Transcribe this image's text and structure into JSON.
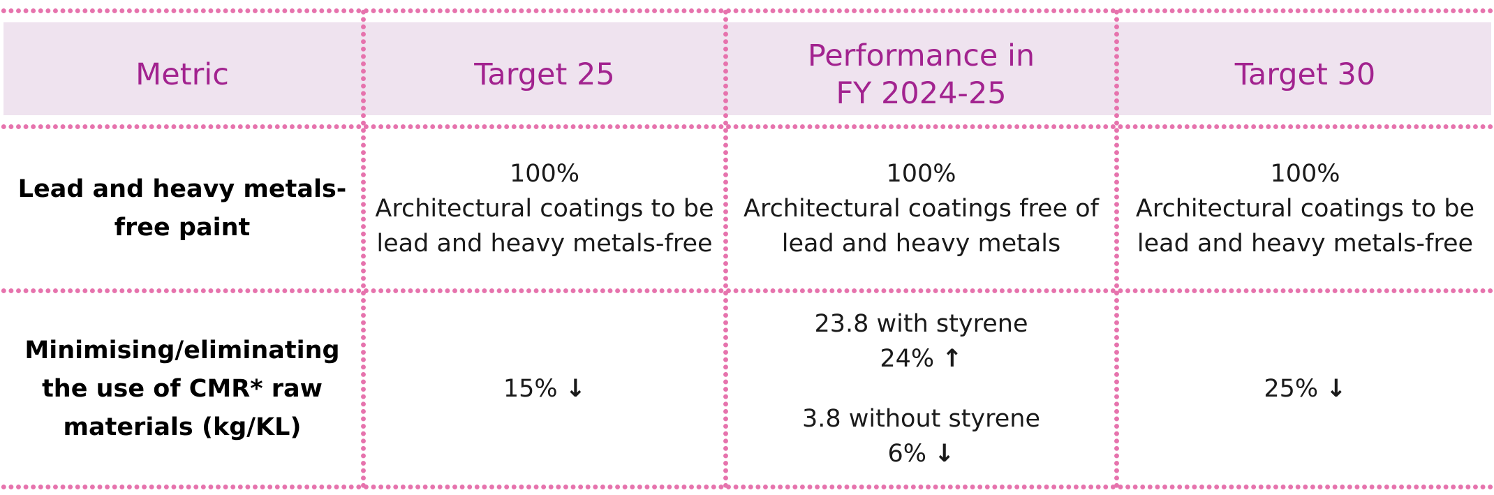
{
  "table": {
    "headers": [
      "Metric",
      "Target 25",
      "Performance in",
      "FY 2024-25",
      "Target 30"
    ],
    "rows": [
      {
        "metric": [
          "Lead and heavy metals-",
          "free paint"
        ],
        "target25": [
          "100%",
          "Architectural coatings to be",
          "lead and heavy metals-free"
        ],
        "performance": [
          "100%",
          "Architectural coatings free of",
          "lead and heavy metals"
        ],
        "target30": [
          "100%",
          "Architectural coatings to be",
          "lead and heavy metals-free"
        ]
      },
      {
        "metric": [
          "Minimising/eliminating",
          "the use of CMR* raw",
          "materials (kg/KL)"
        ],
        "target25": "15%",
        "performance": {
          "with_styrene_label": "23.8 with styrene",
          "with_styrene_change": "24%",
          "without_styrene_label": "3.8 without styrene",
          "without_styrene_change": "6%"
        },
        "target30": "25%"
      }
    ],
    "arrows": {
      "up": "↑",
      "down": "↓"
    }
  },
  "colors": {
    "header_text": "#a2238f",
    "header_bg": "#efe3ef",
    "dots": "#e673ad"
  }
}
